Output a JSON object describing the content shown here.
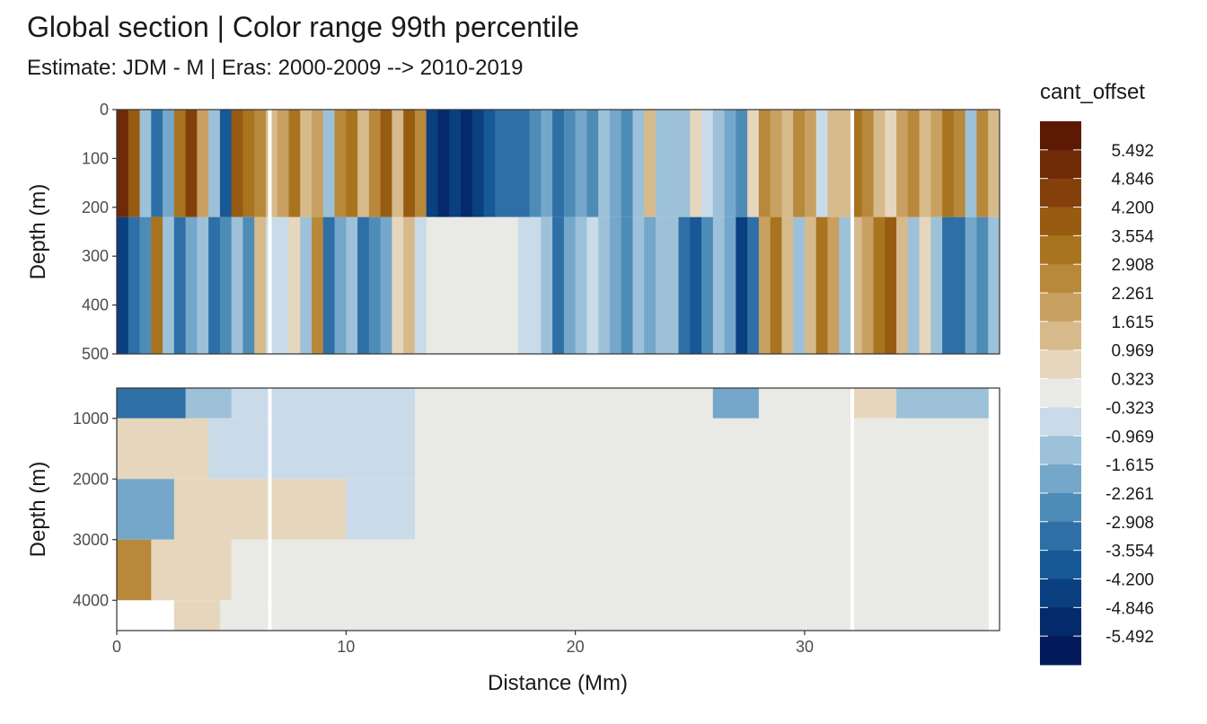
{
  "title": "Global section | Color range 99th percentile",
  "subtitle": "Estimate: JDM - M | Eras: 2000-2009 --> 2010-2019",
  "chart_data": [
    {
      "type": "heatmap",
      "panel": "upper",
      "ylabel": "Depth (m)",
      "xlim": [
        0,
        38.5
      ],
      "ylim": [
        500,
        0
      ],
      "y_reversed": true,
      "yticks": [
        "0",
        "100",
        "200",
        "300",
        "400",
        "500"
      ],
      "ytick_values": [
        0,
        100,
        200,
        300,
        400,
        500
      ],
      "x_strips": [
        0,
        0.5,
        1,
        1.5,
        2,
        2.5,
        3,
        3.5,
        4,
        4.5,
        5,
        5.5,
        6,
        6.5,
        7,
        7.5,
        8,
        8.5,
        9,
        9.5,
        10,
        10.5,
        11,
        11.5,
        12,
        12.5,
        13,
        13.5,
        14,
        14.5,
        15,
        15.5,
        16,
        16.5,
        17,
        17.5,
        18,
        18.5,
        19,
        19.5,
        20,
        20.5,
        21,
        21.5,
        22,
        22.5,
        23,
        23.5,
        24,
        24.5,
        25,
        25.5,
        26,
        26.5,
        27,
        27.5,
        28,
        28.5,
        29,
        29.5,
        30,
        30.5,
        31,
        31.5,
        32,
        32.5,
        33,
        33.5,
        34,
        34.5,
        35,
        35.5,
        36,
        36.5,
        37,
        37.5,
        38
      ],
      "strip_values_top": [
        5.0,
        4.0,
        -1.0,
        -3.5,
        -2.0,
        3.0,
        4.5,
        2.0,
        -1.5,
        -4.0,
        4.0,
        3.5,
        2.5,
        1.5,
        2.0,
        3.0,
        1.0,
        2.0,
        -1.5,
        2.5,
        3.0,
        1.0,
        2.5,
        4.0,
        1.0,
        4.0,
        2.5,
        -4.5,
        -5.0,
        -4.5,
        -5.0,
        -4.5,
        -4.0,
        -3.5,
        -3.0,
        -3.5,
        -2.5,
        -2.0,
        -3.0,
        -2.5,
        -2.0,
        -2.5,
        -1.5,
        -2.0,
        -2.5,
        -1.0,
        1.0,
        -1.0,
        -1.5,
        -1.0,
        0.5,
        -0.8,
        -1.5,
        -2.0,
        -2.5,
        0.8,
        2.5,
        2.0,
        1.5,
        2.5,
        2.0,
        -0.5,
        1.0,
        1.5,
        3.0,
        2.5,
        1.5,
        0.8,
        2.0,
        2.5,
        1.0,
        2.0,
        3.5,
        2.5,
        -1.5,
        2.5,
        1.0
      ],
      "strip_values_bottom": [
        -4.5,
        -3.5,
        -2.5,
        3.0,
        -1.5,
        -3.5,
        -2.0,
        -1.0,
        -3.0,
        -2.5,
        -1.5,
        -2.5,
        1.0,
        -0.5,
        -0.5,
        0.5,
        -1.5,
        2.5,
        -3.0,
        -2.0,
        -1.5,
        -3.5,
        -2.5,
        -2.0,
        0.8,
        1.5,
        -0.8,
        -0.3,
        0.0,
        0.0,
        0.0,
        0.0,
        0.0,
        0.0,
        0.0,
        -0.5,
        -0.5,
        -1.5,
        -3.5,
        -2.0,
        -1.5,
        -0.8,
        -1.0,
        -2.0,
        -2.5,
        -1.5,
        -2.0,
        -1.0,
        -1.5,
        -3.0,
        -4.0,
        -2.5,
        -1.5,
        -2.0,
        -4.5,
        -3.0,
        2.0,
        3.5,
        1.5,
        -1.0,
        1.5,
        3.0,
        2.0,
        -1.0,
        1.0,
        2.0,
        3.5,
        4.0,
        1.5,
        -1.0,
        0.8,
        -1.5,
        -3.5,
        -3.0,
        -2.0,
        -2.5,
        -1.5
      ]
    },
    {
      "type": "heatmap",
      "panel": "lower",
      "xlabel": "Distance (Mm)",
      "ylabel": "Depth (m)",
      "xlim": [
        0,
        38.5
      ],
      "ylim": [
        4500,
        500
      ],
      "y_reversed": true,
      "xticks": [
        "0",
        "10",
        "20",
        "30"
      ],
      "xtick_values": [
        0,
        10,
        20,
        30
      ],
      "yticks": [
        "1000",
        "2000",
        "3000",
        "4000"
      ],
      "ytick_values": [
        1000,
        2000,
        3000,
        4000
      ],
      "depth_bands": [
        {
          "depth": [
            500,
            1000
          ],
          "values_by_range": [
            {
              "x": [
                0,
                3
              ],
              "value": -3.0
            },
            {
              "x": [
                3,
                5
              ],
              "value": -1.5
            },
            {
              "x": [
                5,
                13
              ],
              "value": -0.8
            },
            {
              "x": [
                13,
                26
              ],
              "value": 0.0
            },
            {
              "x": [
                26,
                28
              ],
              "value": -2.0
            },
            {
              "x": [
                28,
                32
              ],
              "value": 0.0
            },
            {
              "x": [
                32,
                34
              ],
              "value": 0.5
            },
            {
              "x": [
                34,
                38
              ],
              "value": -1.5
            }
          ]
        },
        {
          "depth": [
            1000,
            2000
          ],
          "values_by_range": [
            {
              "x": [
                0,
                4
              ],
              "value": 0.8
            },
            {
              "x": [
                4,
                13
              ],
              "value": -0.5
            },
            {
              "x": [
                13,
                38
              ],
              "value": 0.0
            }
          ]
        },
        {
          "depth": [
            2000,
            3000
          ],
          "values_by_range": [
            {
              "x": [
                0,
                2.5
              ],
              "value": -2.0
            },
            {
              "x": [
                2.5,
                10
              ],
              "value": 0.5
            },
            {
              "x": [
                10,
                13
              ],
              "value": -0.5
            },
            {
              "x": [
                13,
                38
              ],
              "value": 0.0
            }
          ]
        },
        {
          "depth": [
            3000,
            4000
          ],
          "values_by_range": [
            {
              "x": [
                0,
                1.5
              ],
              "value": 2.5
            },
            {
              "x": [
                1.5,
                5
              ],
              "value": 0.8
            },
            {
              "x": [
                5,
                38
              ],
              "value": 0.0
            }
          ]
        },
        {
          "depth": [
            4000,
            4500
          ],
          "values_by_range": [
            {
              "x": [
                2.5,
                4.5
              ],
              "value": 0.8
            },
            {
              "x": [
                4.5,
                38
              ],
              "value": 0.0
            }
          ]
        }
      ]
    }
  ],
  "legend": {
    "title": "cant_offset",
    "labels": [
      "5.492",
      "4.846",
      "4.200",
      "3.554",
      "2.908",
      "2.261",
      "1.615",
      "0.969",
      "0.323",
      "-0.323",
      "-0.969",
      "-1.615",
      "-2.261",
      "-2.908",
      "-3.554",
      "-4.200",
      "-4.846",
      "-5.492"
    ],
    "break_values": [
      5.492,
      4.846,
      4.2,
      3.554,
      2.908,
      2.261,
      1.615,
      0.969,
      0.323,
      -0.323,
      -0.969,
      -1.615,
      -2.261,
      -2.908,
      -3.554,
      -4.2,
      -4.846,
      -5.492
    ],
    "colors": [
      "#5c1a05",
      "#6f2a08",
      "#84400a",
      "#975b12",
      "#a8741f",
      "#b8883b",
      "#c8a062",
      "#d7ba8c",
      "#e6d6bd",
      "#e9e9e5",
      "#c9dbe8",
      "#9dc1d8",
      "#74a7c9",
      "#4e8cb8",
      "#2e70a6",
      "#175896",
      "#0a3f80",
      "#042a6c",
      "#021a5a"
    ]
  }
}
